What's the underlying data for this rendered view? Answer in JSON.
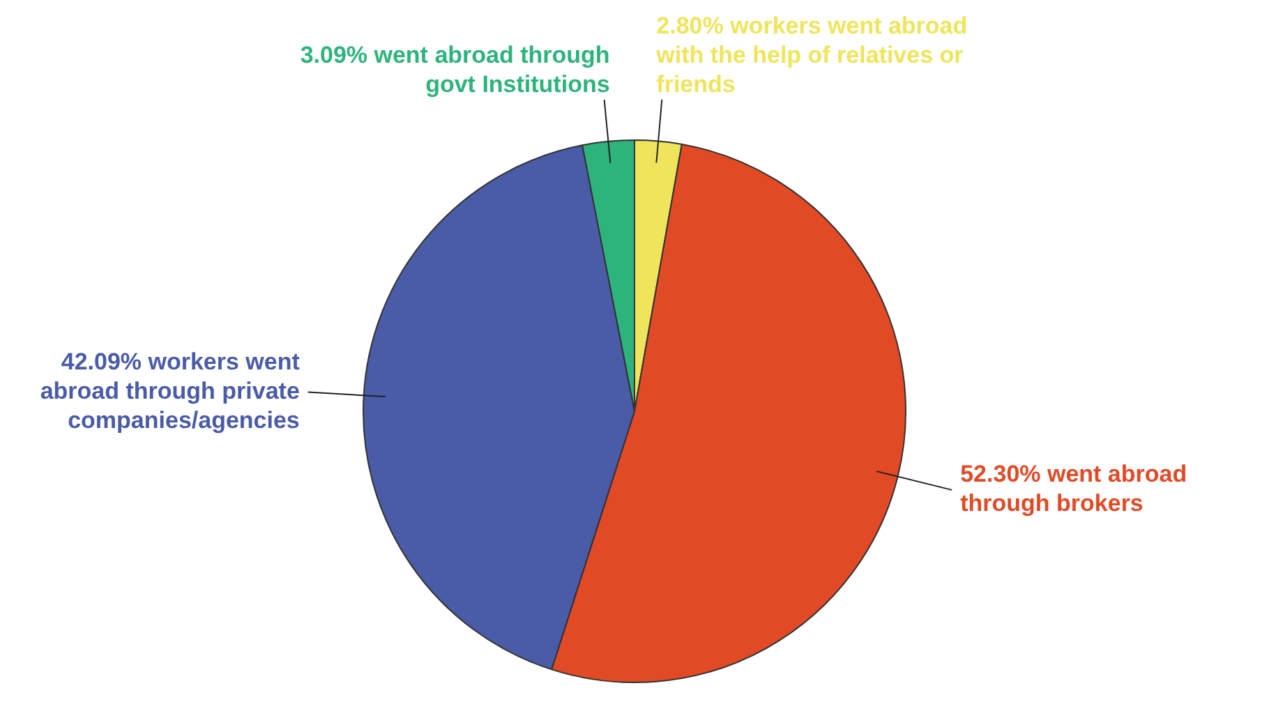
{
  "chart_data": {
    "type": "pie",
    "categories": [
      "2.80% workers went abroad with the help of relatives or friends",
      "52.30% went abroad through brokers",
      "42.09% workers went abroad through private companies/agencies",
      "3.09% went abroad through govt Institutions"
    ],
    "values": [
      2.8,
      52.3,
      42.09,
      3.09
    ],
    "colors": [
      "#efe55c",
      "#e24a26",
      "#4a5ba8",
      "#2db47c"
    ],
    "legend": false
  }
}
